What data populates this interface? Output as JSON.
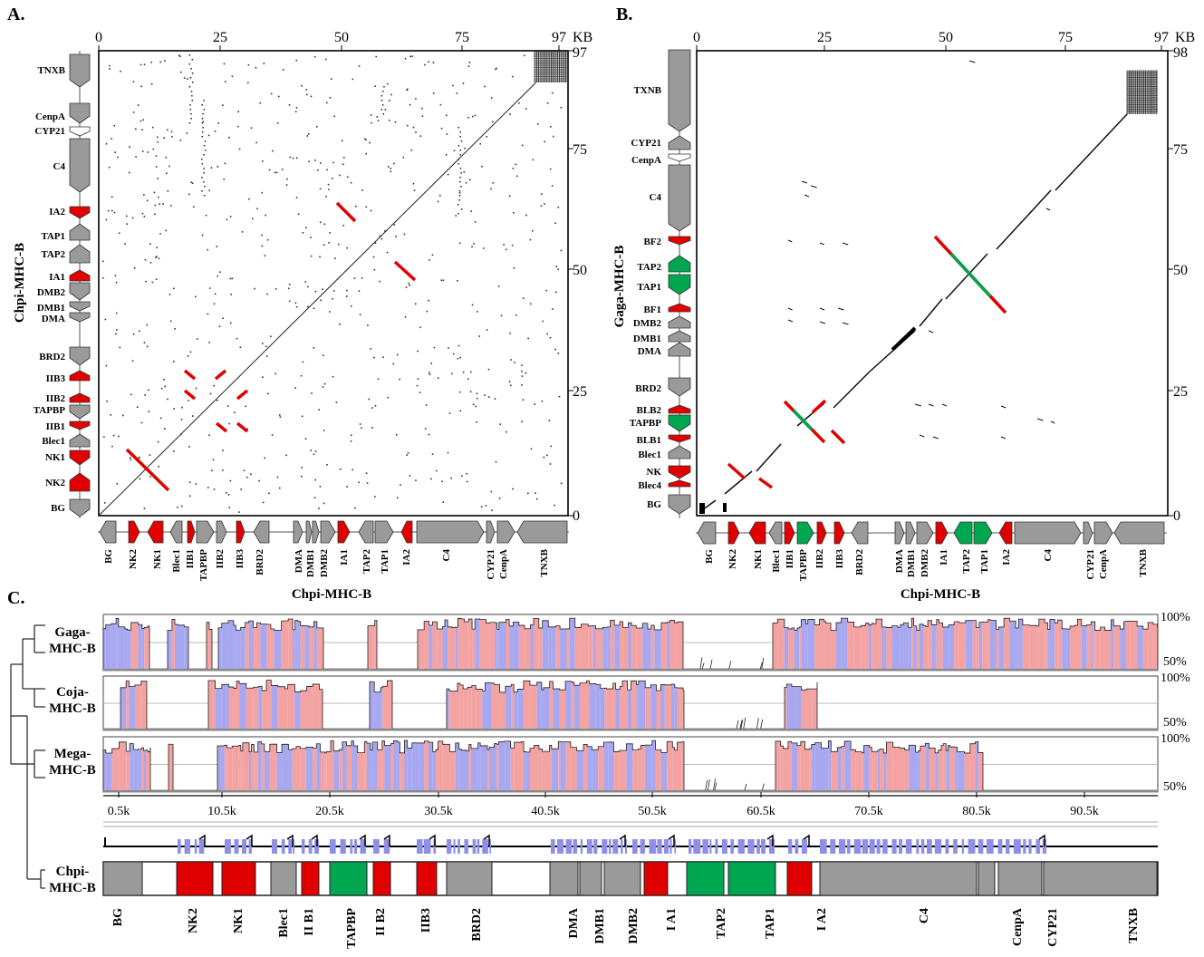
{
  "panels": {
    "a": {
      "label": "A.",
      "x_ticks": [
        "0",
        "25",
        "50",
        "75",
        "97"
      ],
      "x_unit": "KB",
      "y_ticks": [
        "97",
        "75",
        "50",
        "25",
        "0"
      ],
      "x_title": "Chpi-MHC-B",
      "y_title": "Chpi-MHC-B",
      "left_genes": [
        "TNXB",
        "CenpA",
        "CYP21",
        "C4",
        "IA2",
        "TAP1",
        "TAP2",
        "IA1",
        "DMB2",
        "DMB1",
        "DMA",
        "BRD2",
        "IIB3",
        "IIB2",
        "TAPBP",
        "IIB1",
        "Blec1",
        "NK1",
        "NK2",
        "BG"
      ],
      "bottom_genes": [
        "BG",
        "NK2",
        "NK1",
        "Blec1",
        "IIB1",
        "TAPBP",
        "IIB2",
        "IIB3",
        "BRD2",
        "DMA",
        "DMB1",
        "DMB2",
        "IA1",
        "TAP2",
        "TAP1",
        "IA2",
        "C4",
        "CYP21",
        "CenpA",
        "TNXB"
      ]
    },
    "b": {
      "label": "B.",
      "x_ticks": [
        "0",
        "25",
        "50",
        "75",
        "97"
      ],
      "x_unit": "KB",
      "y_ticks": [
        "98",
        "75",
        "50",
        "25",
        "0"
      ],
      "x_title": "Chpi-MHC-B",
      "y_title": "Gaga-MHC-B",
      "left_genes": [
        "TXNB",
        "CYP21",
        "CenpA",
        "C4",
        "BF2",
        "TAP2",
        "TAP1",
        "BF1",
        "DMB2",
        "DMB1",
        "DMA",
        "BRD2",
        "BLB2",
        "TAPBP",
        "BLB1",
        "Blec1",
        "NK",
        "Blec4",
        "BG"
      ],
      "bottom_genes": [
        "BG",
        "NK2",
        "NK1",
        "Blec1",
        "IIB1",
        "TAPBP",
        "IIB2",
        "IIB3",
        "BRD2",
        "DMA",
        "DMB1",
        "DMB2",
        "IA1",
        "TAP2",
        "TAP1",
        "IA2",
        "C4",
        "CYP21",
        "CenpA",
        "TNXB"
      ]
    },
    "c": {
      "label": "C.",
      "tracks": [
        {
          "name1": "Gaga-",
          "name2": "MHC-B",
          "pct_top": "100%",
          "pct_bottom": "50%"
        },
        {
          "name1": "Coja-",
          "name2": "MHC-B",
          "pct_top": "100%",
          "pct_bottom": "50%"
        },
        {
          "name1": "Mega-",
          "name2": "MHC-B",
          "pct_top": "100%",
          "pct_bottom": "50%"
        }
      ],
      "x_ticks": [
        "0.5k",
        "10.5k",
        "20.5k",
        "30.5k",
        "40.5k",
        "50.5k",
        "60.5k",
        "70.5k",
        "80.5k",
        "90.5k"
      ],
      "reference": {
        "name1": "Chpi-",
        "name2": "MHC-B"
      },
      "bottom_genes": [
        "BG",
        "NK2",
        "NK1",
        "Blec1",
        "II B1",
        "TAPBP",
        "II B2",
        "IIB3",
        "BRD2",
        "DMA",
        "DMB1",
        "DMB2",
        "I A1",
        "TAP2",
        "TAP1",
        "I A2",
        "C4",
        "CenpA",
        "CYP21",
        "TNXB"
      ]
    }
  },
  "colors": {
    "gene_grey": "#9a9a9a",
    "gene_red": "#e00000",
    "gene_green": "#00a650",
    "exon_coding": "#f4a3a3",
    "exon_other": "#a8a8f0"
  }
}
